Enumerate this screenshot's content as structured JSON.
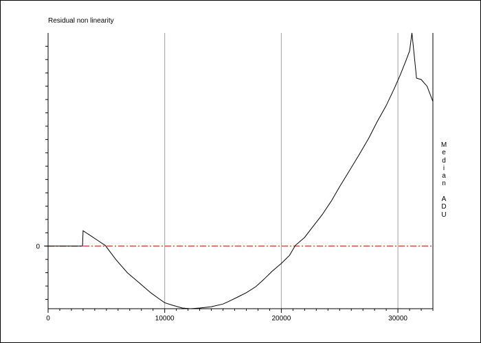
{
  "chart_data": {
    "type": "line",
    "title": "Residual non linearity",
    "xlabel": "",
    "ylabel": "Median ADU",
    "xlim": [
      0,
      33000
    ],
    "ylim": [
      -0.00094,
      0.0032
    ],
    "x_ticks": [
      0,
      10000,
      20000,
      30000
    ],
    "x_tick_labels": [
      "0",
      "10000",
      "20000",
      "30000"
    ],
    "y_tick_labels": [
      "0"
    ],
    "y_tick_values": [
      0
    ],
    "grid": "vertical at x tick labels",
    "zero_line": {
      "value": 0,
      "color": "#d03020",
      "style": "dash-dot"
    },
    "series": [
      {
        "color": "#000000",
        "x": [
          0,
          1000,
          2000,
          2950,
          3000,
          3700,
          4300,
          4900,
          5800,
          6800,
          7800,
          8800,
          9500,
          10000,
          10700,
          11500,
          12200,
          13000,
          14000,
          15000,
          15500,
          16200,
          17000,
          17800,
          18500,
          19200,
          20000,
          20700,
          21200,
          22000,
          22700,
          23500,
          24300,
          25000,
          25800,
          26700,
          27500,
          28200,
          29000,
          29700,
          30200,
          30700,
          31000,
          31200,
          31600,
          32000,
          32500,
          33000
        ],
        "y": [
          0,
          0,
          0,
          0.0,
          0.00023,
          0.00015,
          8e-05,
          1e-05,
          -0.0002,
          -0.0004,
          -0.00055,
          -0.0007,
          -0.00079,
          -0.00085,
          -0.00089,
          -0.00093,
          -0.00094,
          -0.00093,
          -0.00091,
          -0.00087,
          -0.00083,
          -0.00077,
          -0.0007,
          -0.00061,
          -0.0005,
          -0.00038,
          -0.00026,
          -0.00014,
          1e-05,
          0.00013,
          0.00029,
          0.00047,
          0.00068,
          0.00089,
          0.00112,
          0.00138,
          0.00162,
          0.00186,
          0.00211,
          0.00237,
          0.00257,
          0.00279,
          0.00293,
          0.0032,
          0.00252,
          0.0025,
          0.0024,
          0.00217
        ]
      }
    ]
  }
}
